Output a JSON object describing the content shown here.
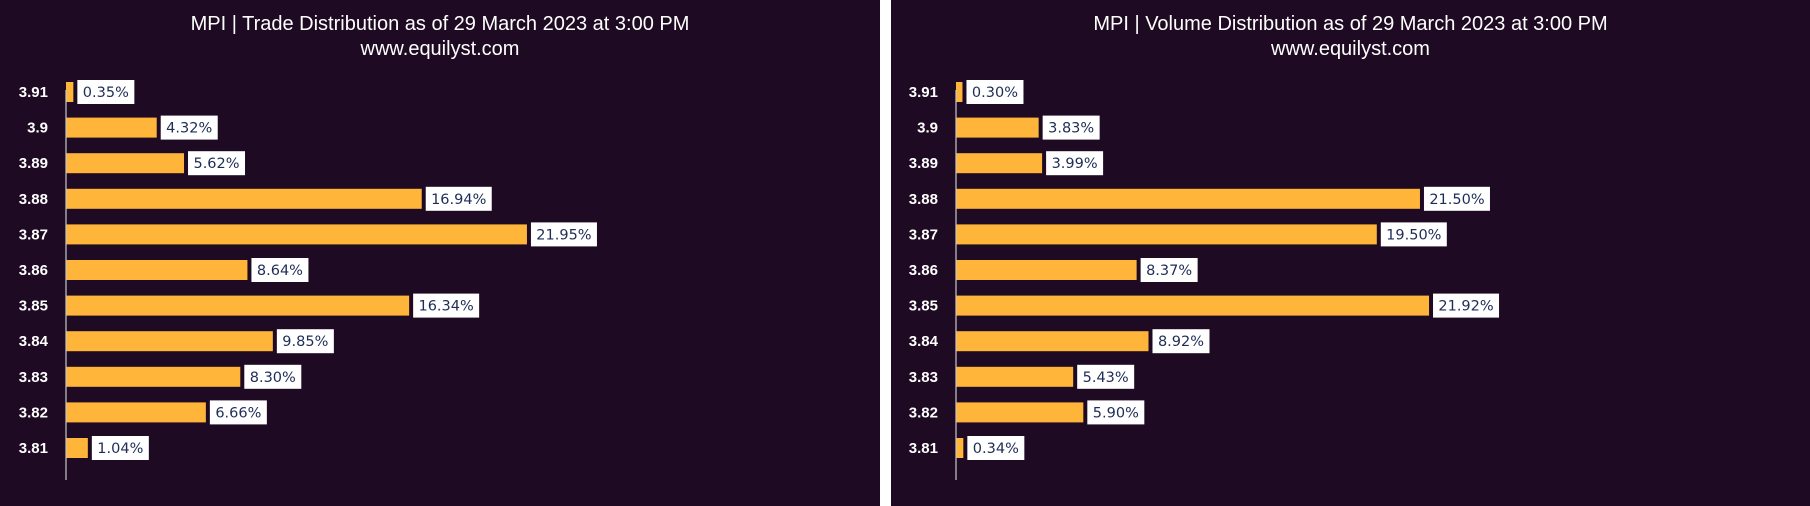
{
  "colors": {
    "background": "#1e0a22",
    "bar": "#ffb43a",
    "label_box": "#ffffff",
    "label_text": "#1f2d55",
    "axis": "#c9c9c9",
    "text": "#ffffff"
  },
  "chart_data": [
    {
      "type": "bar",
      "orientation": "horizontal",
      "title": "MPI | Trade Distribution as of 29 March 2023 at 3:00 PM",
      "subtitle": "www.equilyst.com",
      "categories": [
        "3.91",
        "3.9",
        "3.89",
        "3.88",
        "3.87",
        "3.86",
        "3.85",
        "3.84",
        "3.83",
        "3.82",
        "3.81"
      ],
      "values": [
        0.35,
        4.32,
        5.62,
        16.94,
        21.95,
        8.64,
        16.34,
        9.85,
        8.3,
        6.66,
        1.04
      ],
      "data_labels": [
        "0.35%",
        "4.32%",
        "5.62%",
        "16.94%",
        "21.95%",
        "8.64%",
        "16.34%",
        "9.85%",
        "8.30%",
        "6.66%",
        "1.04%"
      ],
      "unit": "%",
      "grid": false,
      "legend": "none"
    },
    {
      "type": "bar",
      "orientation": "horizontal",
      "title": "MPI | Volume Distribution as of 29 March 2023 at 3:00 PM",
      "subtitle": "www.equilyst.com",
      "categories": [
        "3.91",
        "3.9",
        "3.89",
        "3.88",
        "3.87",
        "3.86",
        "3.85",
        "3.84",
        "3.83",
        "3.82",
        "3.81"
      ],
      "values": [
        0.3,
        3.83,
        3.99,
        21.5,
        19.5,
        8.37,
        21.92,
        8.92,
        5.43,
        5.9,
        0.34
      ],
      "data_labels": [
        "0.30%",
        "3.83%",
        "3.99%",
        "21.50%",
        "19.50%",
        "8.37%",
        "21.92%",
        "8.92%",
        "5.43%",
        "5.90%",
        "0.34%"
      ],
      "unit": "%",
      "grid": false,
      "legend": "none"
    }
  ]
}
